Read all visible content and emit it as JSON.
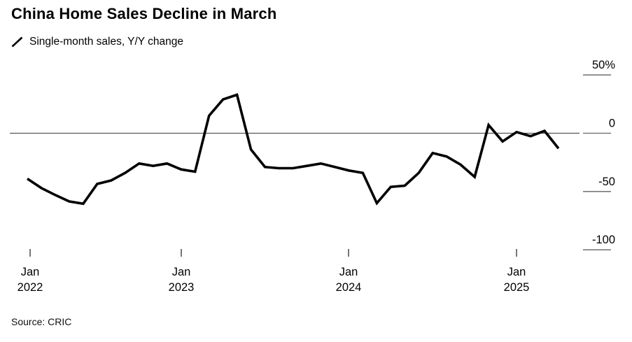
{
  "header": {
    "title": "China Home Sales Decline in March"
  },
  "legend": {
    "label": "Single-month sales, Y/Y change",
    "series_color": "#000000"
  },
  "source": {
    "label": "Source: CRIC"
  },
  "chart_data": {
    "type": "line",
    "title": "China Home Sales Decline in March",
    "legend": "Single-month sales, Y/Y change",
    "unit": "%",
    "series_color": "#000000",
    "axis_color": "#555555",
    "tick_color": "#7a7a7a",
    "grid": "off",
    "legend_position": "top-left",
    "y_axis_side": "right",
    "ylim": [
      -115,
      55
    ],
    "zero_line": true,
    "x": [
      "Jan 2022",
      "Feb 2022",
      "Mar 2022",
      "Apr 2022",
      "May 2022",
      "Jun 2022",
      "Jul 2022",
      "Aug 2022",
      "Sep 2022",
      "Oct 2022",
      "Nov 2022",
      "Dec 2022",
      "Jan 2023",
      "Feb 2023",
      "Mar 2023",
      "Apr 2023",
      "May 2023",
      "Jun 2023",
      "Jul 2023",
      "Aug 2023",
      "Sep 2023",
      "Oct 2023",
      "Nov 2023",
      "Dec 2023",
      "Jan 2024",
      "Feb 2024",
      "Mar 2024",
      "Apr 2024",
      "May 2024",
      "Jun 2024",
      "Jul 2024",
      "Aug 2024",
      "Sep 2024",
      "Oct 2024",
      "Nov 2024",
      "Dec 2024",
      "Jan 2025",
      "Feb 2025",
      "Mar 2025"
    ],
    "values": [
      -39,
      -47,
      -53,
      -58.5,
      -60.5,
      -43.5,
      -40.5,
      -34,
      -26,
      -28,
      -26,
      -31,
      -33,
      15,
      29,
      33,
      -14,
      -29,
      -30,
      -30,
      -28,
      -26,
      -29,
      -32,
      -34,
      -60,
      -46,
      -45,
      -34,
      -17,
      -20,
      -27,
      -37.5,
      7,
      -7,
      1,
      -2.5,
      2,
      -13
    ],
    "y_axis": {
      "ticks": [
        {
          "value": 50,
          "label": "50%"
        },
        {
          "value": 0,
          "label": "0"
        },
        {
          "value": -50,
          "label": "-50"
        },
        {
          "value": -100,
          "label": "-100"
        }
      ]
    },
    "x_axis": {
      "ticks": [
        {
          "month": "Jan",
          "year": "2022"
        },
        {
          "month": "Jan",
          "year": "2023"
        },
        {
          "month": "Jan",
          "year": "2024"
        },
        {
          "month": "Jan",
          "year": "2025"
        }
      ]
    }
  }
}
